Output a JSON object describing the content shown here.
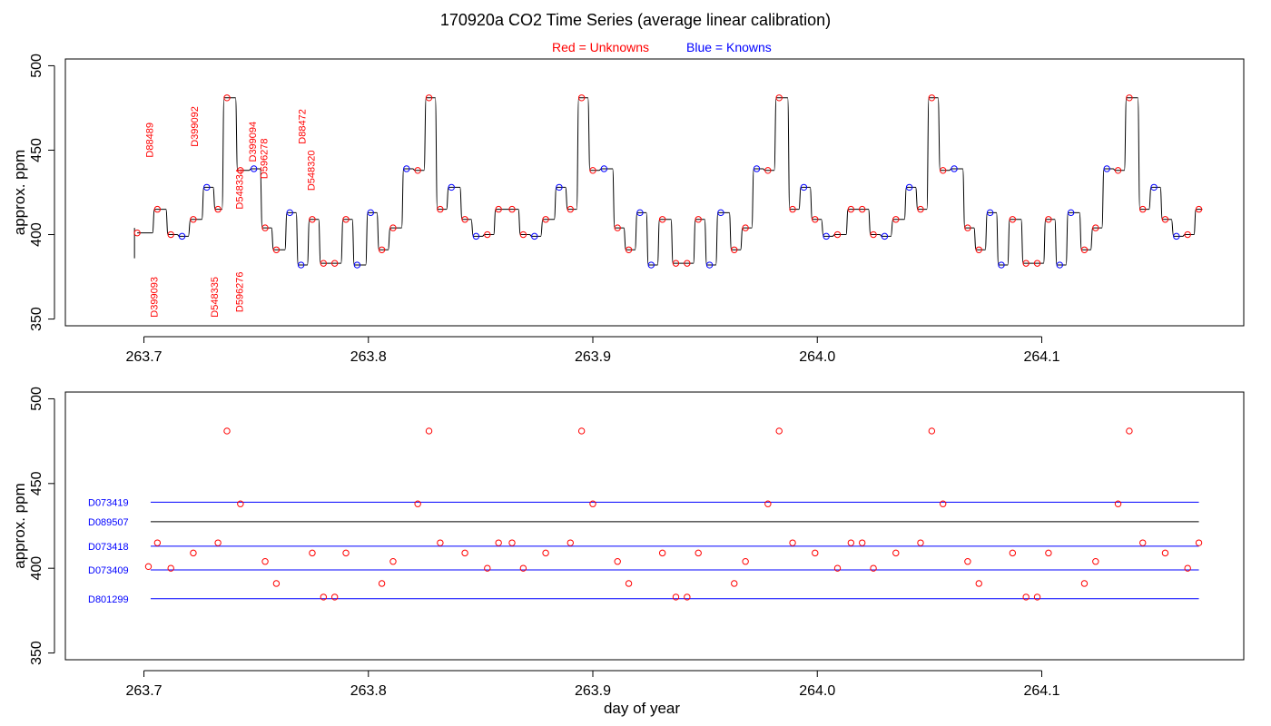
{
  "title": "170920a   CO2 Time Series (average linear calibration)",
  "legend": {
    "unknowns": "Red = Unknowns",
    "knowns": "Blue = Knowns"
  },
  "colors": {
    "unknown": "#ff0000",
    "known": "#0000ff",
    "trace": "#000000"
  },
  "chart_data": [
    {
      "type": "line",
      "panel": "top",
      "ylabel": "approx. ppm",
      "xlim": [
        263.665,
        264.19
      ],
      "ylim": [
        346,
        504
      ],
      "xticks": [
        263.7,
        263.8,
        263.9,
        264.0,
        264.1
      ],
      "yticks": [
        350,
        400,
        450,
        500
      ],
      "trace_start": [
        263.697,
        263.698
      ],
      "levels": [
        {
          "x": 263.697,
          "y": 401,
          "t": "u"
        },
        {
          "x": 263.706,
          "y": 415,
          "t": "u"
        },
        {
          "x": 263.712,
          "y": 400,
          "t": "u"
        },
        {
          "x": 263.717,
          "y": 399,
          "t": "k"
        },
        {
          "x": 263.722,
          "y": 409,
          "t": "u"
        },
        {
          "x": 263.728,
          "y": 428,
          "t": "k"
        },
        {
          "x": 263.733,
          "y": 415,
          "t": "u"
        },
        {
          "x": 263.737,
          "y": 481,
          "t": "u"
        },
        {
          "x": 263.743,
          "y": 438,
          "t": "u"
        },
        {
          "x": 263.749,
          "y": 439,
          "t": "k"
        },
        {
          "x": 263.754,
          "y": 404,
          "t": "u"
        },
        {
          "x": 263.759,
          "y": 391,
          "t": "u"
        },
        {
          "x": 263.765,
          "y": 413,
          "t": "k"
        },
        {
          "x": 263.77,
          "y": 382,
          "t": "k"
        },
        {
          "x": 263.775,
          "y": 409,
          "t": "u"
        },
        {
          "x": 263.78,
          "y": 383,
          "t": "u"
        },
        {
          "x": 263.785,
          "y": 383,
          "t": "u"
        },
        {
          "x": 263.79,
          "y": 409,
          "t": "u"
        },
        {
          "x": 263.795,
          "y": 382,
          "t": "k"
        },
        {
          "x": 263.801,
          "y": 413,
          "t": "k"
        },
        {
          "x": 263.806,
          "y": 391,
          "t": "u"
        },
        {
          "x": 263.811,
          "y": 404,
          "t": "u"
        },
        {
          "x": 263.817,
          "y": 439,
          "t": "k"
        },
        {
          "x": 263.822,
          "y": 438,
          "t": "u"
        },
        {
          "x": 263.827,
          "y": 481,
          "t": "u"
        },
        {
          "x": 263.832,
          "y": 415,
          "t": "u"
        },
        {
          "x": 263.837,
          "y": 428,
          "t": "k"
        },
        {
          "x": 263.843,
          "y": 409,
          "t": "u"
        },
        {
          "x": 263.848,
          "y": 399,
          "t": "k"
        },
        {
          "x": 263.853,
          "y": 400,
          "t": "u"
        },
        {
          "x": 263.858,
          "y": 415,
          "t": "u"
        },
        {
          "x": 263.864,
          "y": 415,
          "t": "u"
        },
        {
          "x": 263.869,
          "y": 400,
          "t": "u"
        },
        {
          "x": 263.874,
          "y": 399,
          "t": "k"
        },
        {
          "x": 263.879,
          "y": 409,
          "t": "u"
        },
        {
          "x": 263.885,
          "y": 428,
          "t": "k"
        },
        {
          "x": 263.89,
          "y": 415,
          "t": "u"
        },
        {
          "x": 263.895,
          "y": 481,
          "t": "u"
        },
        {
          "x": 263.9,
          "y": 438,
          "t": "u"
        },
        {
          "x": 263.905,
          "y": 439,
          "t": "k"
        },
        {
          "x": 263.911,
          "y": 404,
          "t": "u"
        },
        {
          "x": 263.916,
          "y": 391,
          "t": "u"
        },
        {
          "x": 263.921,
          "y": 413,
          "t": "k"
        },
        {
          "x": 263.926,
          "y": 382,
          "t": "k"
        },
        {
          "x": 263.931,
          "y": 409,
          "t": "u"
        },
        {
          "x": 263.937,
          "y": 383,
          "t": "u"
        },
        {
          "x": 263.942,
          "y": 383,
          "t": "u"
        },
        {
          "x": 263.947,
          "y": 409,
          "t": "u"
        },
        {
          "x": 263.952,
          "y": 382,
          "t": "k"
        },
        {
          "x": 263.957,
          "y": 413,
          "t": "k"
        },
        {
          "x": 263.963,
          "y": 391,
          "t": "u"
        },
        {
          "x": 263.968,
          "y": 404,
          "t": "u"
        },
        {
          "x": 263.973,
          "y": 439,
          "t": "k"
        },
        {
          "x": 263.978,
          "y": 438,
          "t": "u"
        },
        {
          "x": 263.983,
          "y": 481,
          "t": "u"
        },
        {
          "x": 263.989,
          "y": 415,
          "t": "u"
        },
        {
          "x": 263.994,
          "y": 428,
          "t": "k"
        },
        {
          "x": 263.999,
          "y": 409,
          "t": "u"
        },
        {
          "x": 264.004,
          "y": 399,
          "t": "k"
        },
        {
          "x": 264.009,
          "y": 400,
          "t": "u"
        },
        {
          "x": 264.015,
          "y": 415,
          "t": "u"
        },
        {
          "x": 264.02,
          "y": 415,
          "t": "u"
        },
        {
          "x": 264.025,
          "y": 400,
          "t": "u"
        },
        {
          "x": 264.03,
          "y": 399,
          "t": "k"
        },
        {
          "x": 264.035,
          "y": 409,
          "t": "u"
        },
        {
          "x": 264.041,
          "y": 428,
          "t": "k"
        },
        {
          "x": 264.046,
          "y": 415,
          "t": "u"
        },
        {
          "x": 264.051,
          "y": 481,
          "t": "u"
        },
        {
          "x": 264.056,
          "y": 438,
          "t": "u"
        },
        {
          "x": 264.061,
          "y": 439,
          "t": "k"
        },
        {
          "x": 264.067,
          "y": 404,
          "t": "u"
        },
        {
          "x": 264.072,
          "y": 391,
          "t": "u"
        },
        {
          "x": 264.077,
          "y": 413,
          "t": "k"
        },
        {
          "x": 264.082,
          "y": 382,
          "t": "k"
        },
        {
          "x": 264.087,
          "y": 409,
          "t": "u"
        },
        {
          "x": 264.093,
          "y": 383,
          "t": "u"
        },
        {
          "x": 264.098,
          "y": 383,
          "t": "u"
        },
        {
          "x": 264.103,
          "y": 409,
          "t": "u"
        },
        {
          "x": 264.108,
          "y": 382,
          "t": "k"
        },
        {
          "x": 264.113,
          "y": 413,
          "t": "k"
        },
        {
          "x": 264.119,
          "y": 391,
          "t": "u"
        },
        {
          "x": 264.124,
          "y": 404,
          "t": "u"
        },
        {
          "x": 264.129,
          "y": 439,
          "t": "k"
        },
        {
          "x": 264.134,
          "y": 438,
          "t": "u"
        },
        {
          "x": 264.139,
          "y": 481,
          "t": "u"
        },
        {
          "x": 264.145,
          "y": 415,
          "t": "u"
        },
        {
          "x": 264.15,
          "y": 428,
          "t": "k"
        },
        {
          "x": 264.155,
          "y": 409,
          "t": "u"
        },
        {
          "x": 264.16,
          "y": 399,
          "t": "k"
        },
        {
          "x": 264.165,
          "y": 400,
          "t": "u"
        },
        {
          "x": 264.17,
          "y": 415,
          "t": "u"
        }
      ],
      "annotations": [
        {
          "text": "D88489",
          "x": 263.704,
          "y": 456
        },
        {
          "text": "D399092",
          "x": 263.724,
          "y": 464
        },
        {
          "text": "D548334",
          "x": 263.744,
          "y": 427
        },
        {
          "text": "D399094",
          "x": 263.75,
          "y": 455
        },
        {
          "text": "D596278",
          "x": 263.755,
          "y": 445
        },
        {
          "text": "D88472",
          "x": 263.772,
          "y": 464
        },
        {
          "text": "D548320",
          "x": 263.776,
          "y": 438
        },
        {
          "text": "D596276",
          "x": 263.744,
          "y": 366
        },
        {
          "text": "D399093",
          "x": 263.706,
          "y": 363
        },
        {
          "text": "D548335",
          "x": 263.733,
          "y": 363
        }
      ]
    },
    {
      "type": "scatter",
      "panel": "bottom",
      "xlabel": "day of year",
      "ylabel": "approx. ppm",
      "xlim": [
        263.665,
        264.19
      ],
      "ylim": [
        346,
        504
      ],
      "xticks": [
        263.7,
        263.8,
        263.9,
        264.0,
        264.1
      ],
      "yticks": [
        350,
        400,
        450,
        500
      ],
      "reference_lines": [
        {
          "label": "D073419",
          "y": 439,
          "color": "#0000ff"
        },
        {
          "label": "D089507",
          "y": 427.5,
          "color": "#000000"
        },
        {
          "label": "D073418",
          "y": 413,
          "color": "#0000ff"
        },
        {
          "label": "D073409",
          "y": 399,
          "color": "#0000ff"
        },
        {
          "label": "D801299",
          "y": 382,
          "color": "#0000ff"
        }
      ],
      "line_x_range": [
        263.703,
        264.17
      ]
    }
  ]
}
